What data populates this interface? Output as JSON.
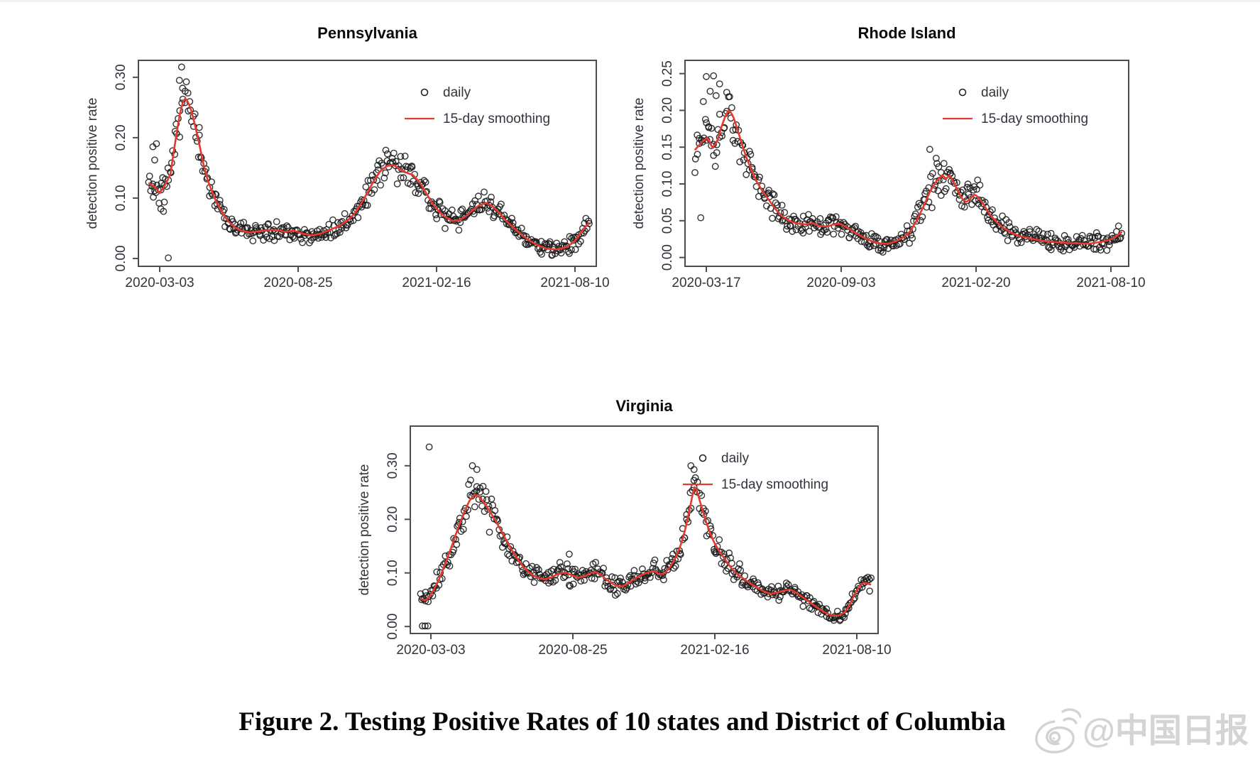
{
  "page": {
    "background": "#ffffff"
  },
  "caption": {
    "text": "Figure 2. Testing Positive Rates of 10 states and District of Columbia"
  },
  "watermark": {
    "handle": "@中国日报",
    "icon": "weibo-logo-icon",
    "color": "#d4d4d4"
  },
  "legend": {
    "daily_label": "daily",
    "smoothing_label": "15-day smoothing"
  },
  "colors": {
    "smoothing_line": "#e8392f",
    "point_stroke": "#1c1c1c",
    "axis": "#4d4d4d",
    "tick_text": "#30343c",
    "title_text": "#0a0a0a"
  },
  "chart_data": [
    {
      "id": "pennsylvania",
      "type": "scatter",
      "title": "Pennsylvania",
      "ylabel": "detection positive rate",
      "xlabel": "",
      "grid": false,
      "legend_position": "top-right-inside",
      "xticks": [
        "2020-03-03",
        "2020-08-25",
        "2021-02-16",
        "2021-08-10"
      ],
      "yticks": [
        0.0,
        0.1,
        0.2,
        0.3
      ],
      "ytick_labels": [
        "0.00",
        "0.10",
        "0.20",
        "0.30"
      ],
      "ylim": [
        -0.013,
        0.328
      ],
      "series": [
        {
          "name": "daily",
          "style": "open-circle",
          "n_points": 430,
          "seed": 11,
          "noise_base": 0.009,
          "noise_prop": 0.095,
          "outliers": [
            [
              0.01,
              0.185
            ],
            [
              0.018,
              0.19
            ],
            [
              0.014,
              0.163
            ],
            [
              0.028,
              0.082
            ],
            [
              0.034,
              0.078
            ],
            [
              0.045,
              0.001
            ],
            [
              0.07,
              0.295
            ],
            [
              0.075,
              0.317
            ]
          ]
        },
        {
          "name": "15-day smoothing",
          "style": "line",
          "keypoints": [
            [
              0,
              0.125
            ],
            [
              0.015,
              0.118
            ],
            [
              0.025,
              0.108
            ],
            [
              0.035,
              0.118
            ],
            [
              0.05,
              0.14
            ],
            [
              0.06,
              0.19
            ],
            [
              0.07,
              0.235
            ],
            [
              0.078,
              0.26
            ],
            [
              0.085,
              0.266
            ],
            [
              0.095,
              0.25
            ],
            [
              0.105,
              0.222
            ],
            [
              0.115,
              0.19
            ],
            [
              0.125,
              0.155
            ],
            [
              0.135,
              0.128
            ],
            [
              0.15,
              0.1
            ],
            [
              0.165,
              0.078
            ],
            [
              0.18,
              0.062
            ],
            [
              0.195,
              0.052
            ],
            [
              0.21,
              0.046
            ],
            [
              0.23,
              0.043
            ],
            [
              0.25,
              0.045
            ],
            [
              0.27,
              0.047
            ],
            [
              0.29,
              0.047
            ],
            [
              0.31,
              0.044
            ],
            [
              0.33,
              0.046
            ],
            [
              0.35,
              0.041
            ],
            [
              0.37,
              0.038
            ],
            [
              0.39,
              0.041
            ],
            [
              0.41,
              0.047
            ],
            [
              0.43,
              0.053
            ],
            [
              0.45,
              0.062
            ],
            [
              0.465,
              0.072
            ],
            [
              0.48,
              0.088
            ],
            [
              0.495,
              0.107
            ],
            [
              0.51,
              0.127
            ],
            [
              0.525,
              0.144
            ],
            [
              0.54,
              0.153
            ],
            [
              0.555,
              0.155
            ],
            [
              0.57,
              0.148
            ],
            [
              0.585,
              0.142
            ],
            [
              0.6,
              0.138
            ],
            [
              0.615,
              0.126
            ],
            [
              0.63,
              0.108
            ],
            [
              0.645,
              0.09
            ],
            [
              0.66,
              0.077
            ],
            [
              0.675,
              0.068
            ],
            [
              0.69,
              0.062
            ],
            [
              0.705,
              0.063
            ],
            [
              0.72,
              0.07
            ],
            [
              0.735,
              0.08
            ],
            [
              0.75,
              0.088
            ],
            [
              0.765,
              0.092
            ],
            [
              0.78,
              0.087
            ],
            [
              0.795,
              0.076
            ],
            [
              0.81,
              0.063
            ],
            [
              0.825,
              0.053
            ],
            [
              0.845,
              0.04
            ],
            [
              0.865,
              0.029
            ],
            [
              0.885,
              0.021
            ],
            [
              0.905,
              0.016
            ],
            [
              0.925,
              0.015
            ],
            [
              0.945,
              0.018
            ],
            [
              0.965,
              0.027
            ],
            [
              0.985,
              0.047
            ],
            [
              1,
              0.06
            ]
          ]
        }
      ]
    },
    {
      "id": "rhode-island",
      "type": "scatter",
      "title": "Rhode Island",
      "ylabel": "detection positive rate",
      "xlabel": "",
      "grid": false,
      "legend_position": "top-right-inside",
      "xticks": [
        "2020-03-17",
        "2020-09-03",
        "2021-02-20",
        "2021-08-10"
      ],
      "yticks": [
        0.0,
        0.05,
        0.1,
        0.15,
        0.2,
        0.25
      ],
      "ytick_labels": [
        "0.00",
        "0.05",
        "0.10",
        "0.15",
        "0.20",
        "0.25"
      ],
      "ylim": [
        -0.012,
        0.268
      ],
      "series": [
        {
          "name": "daily",
          "style": "open-circle",
          "n_points": 420,
          "seed": 23,
          "noise_base": 0.008,
          "noise_prop": 0.13,
          "outliers": [
            [
              0.02,
              0.212
            ],
            [
              0.027,
              0.246
            ],
            [
              0.044,
              0.247
            ],
            [
              0.036,
              0.226
            ],
            [
              0.058,
              0.236
            ],
            [
              0.05,
              0.22
            ],
            [
              0.014,
              0.054
            ],
            [
              0.55,
              0.147
            ],
            [
              0.565,
              0.135
            ]
          ]
        },
        {
          "name": "15-day smoothing",
          "style": "line",
          "keypoints": [
            [
              0,
              0.146
            ],
            [
              0.015,
              0.156
            ],
            [
              0.03,
              0.163
            ],
            [
              0.042,
              0.149
            ],
            [
              0.052,
              0.157
            ],
            [
              0.062,
              0.177
            ],
            [
              0.072,
              0.193
            ],
            [
              0.08,
              0.201
            ],
            [
              0.09,
              0.192
            ],
            [
              0.1,
              0.174
            ],
            [
              0.11,
              0.155
            ],
            [
              0.12,
              0.137
            ],
            [
              0.132,
              0.12
            ],
            [
              0.145,
              0.103
            ],
            [
              0.16,
              0.089
            ],
            [
              0.175,
              0.077
            ],
            [
              0.19,
              0.065
            ],
            [
              0.205,
              0.056
            ],
            [
              0.22,
              0.05
            ],
            [
              0.24,
              0.046
            ],
            [
              0.26,
              0.045
            ],
            [
              0.275,
              0.047
            ],
            [
              0.29,
              0.043
            ],
            [
              0.31,
              0.042
            ],
            [
              0.325,
              0.045
            ],
            [
              0.34,
              0.046
            ],
            [
              0.355,
              0.041
            ],
            [
              0.375,
              0.034
            ],
            [
              0.395,
              0.027
            ],
            [
              0.415,
              0.022
            ],
            [
              0.435,
              0.019
            ],
            [
              0.455,
              0.019
            ],
            [
              0.475,
              0.023
            ],
            [
              0.49,
              0.028
            ],
            [
              0.505,
              0.036
            ],
            [
              0.52,
              0.051
            ],
            [
              0.535,
              0.069
            ],
            [
              0.55,
              0.089
            ],
            [
              0.562,
              0.101
            ],
            [
              0.572,
              0.108
            ],
            [
              0.58,
              0.112
            ],
            [
              0.588,
              0.107
            ],
            [
              0.597,
              0.112
            ],
            [
              0.607,
              0.101
            ],
            [
              0.617,
              0.089
            ],
            [
              0.627,
              0.079
            ],
            [
              0.635,
              0.075
            ],
            [
              0.645,
              0.08
            ],
            [
              0.655,
              0.086
            ],
            [
              0.665,
              0.081
            ],
            [
              0.677,
              0.071
            ],
            [
              0.69,
              0.059
            ],
            [
              0.705,
              0.049
            ],
            [
              0.72,
              0.041
            ],
            [
              0.74,
              0.034
            ],
            [
              0.76,
              0.029
            ],
            [
              0.785,
              0.026
            ],
            [
              0.81,
              0.023
            ],
            [
              0.84,
              0.021
            ],
            [
              0.87,
              0.02
            ],
            [
              0.9,
              0.019
            ],
            [
              0.925,
              0.019
            ],
            [
              0.95,
              0.021
            ],
            [
              0.97,
              0.024
            ],
            [
              0.985,
              0.028
            ],
            [
              1,
              0.035
            ]
          ]
        }
      ]
    },
    {
      "id": "virginia",
      "type": "scatter",
      "title": "Virginia",
      "ylabel": "detection positive rate",
      "xlabel": "",
      "grid": false,
      "legend_position": "top-right-inside",
      "xticks": [
        "2020-03-03",
        "2020-08-25",
        "2021-02-16",
        "2021-08-10"
      ],
      "yticks": [
        0.0,
        0.1,
        0.2,
        0.3
      ],
      "ytick_labels": [
        "0.00",
        "0.10",
        "0.20",
        "0.30"
      ],
      "ylim": [
        -0.013,
        0.374
      ],
      "series": [
        {
          "name": "daily",
          "style": "open-circle",
          "n_points": 430,
          "seed": 37,
          "noise_base": 0.008,
          "noise_prop": 0.1,
          "outliers": [
            [
              0.004,
              0.001
            ],
            [
              0.01,
              0.001
            ],
            [
              0.016,
              0.001
            ],
            [
              0.019,
              0.335
            ],
            [
              0.115,
              0.3
            ],
            [
              0.125,
              0.293
            ],
            [
              0.6,
              0.3
            ],
            [
              0.607,
              0.293
            ],
            [
              0.33,
              0.135
            ],
            [
              0.56,
              0.135
            ]
          ]
        },
        {
          "name": "15-day smoothing",
          "style": "line",
          "keypoints": [
            [
              0,
              0.052
            ],
            [
              0.01,
              0.048
            ],
            [
              0.02,
              0.056
            ],
            [
              0.03,
              0.07
            ],
            [
              0.042,
              0.09
            ],
            [
              0.055,
              0.118
            ],
            [
              0.07,
              0.152
            ],
            [
              0.085,
              0.188
            ],
            [
              0.1,
              0.22
            ],
            [
              0.11,
              0.237
            ],
            [
              0.12,
              0.246
            ],
            [
              0.13,
              0.242
            ],
            [
              0.142,
              0.23
            ],
            [
              0.155,
              0.213
            ],
            [
              0.17,
              0.192
            ],
            [
              0.185,
              0.169
            ],
            [
              0.2,
              0.146
            ],
            [
              0.215,
              0.126
            ],
            [
              0.23,
              0.109
            ],
            [
              0.245,
              0.098
            ],
            [
              0.26,
              0.091
            ],
            [
              0.275,
              0.088
            ],
            [
              0.29,
              0.092
            ],
            [
              0.305,
              0.098
            ],
            [
              0.32,
              0.101
            ],
            [
              0.335,
              0.096
            ],
            [
              0.35,
              0.091
            ],
            [
              0.365,
              0.094
            ],
            [
              0.378,
              0.1
            ],
            [
              0.39,
              0.102
            ],
            [
              0.402,
              0.095
            ],
            [
              0.415,
              0.086
            ],
            [
              0.43,
              0.078
            ],
            [
              0.445,
              0.074
            ],
            [
              0.46,
              0.08
            ],
            [
              0.475,
              0.089
            ],
            [
              0.49,
              0.096
            ],
            [
              0.505,
              0.101
            ],
            [
              0.518,
              0.104
            ],
            [
              0.53,
              0.097
            ],
            [
              0.543,
              0.1
            ],
            [
              0.555,
              0.112
            ],
            [
              0.567,
              0.13
            ],
            [
              0.578,
              0.153
            ],
            [
              0.589,
              0.186
            ],
            [
              0.598,
              0.222
            ],
            [
              0.604,
              0.247
            ],
            [
              0.609,
              0.262
            ],
            [
              0.614,
              0.252
            ],
            [
              0.622,
              0.228
            ],
            [
              0.632,
              0.2
            ],
            [
              0.642,
              0.176
            ],
            [
              0.652,
              0.156
            ],
            [
              0.663,
              0.141
            ],
            [
              0.675,
              0.126
            ],
            [
              0.688,
              0.111
            ],
            [
              0.702,
              0.098
            ],
            [
              0.716,
              0.09
            ],
            [
              0.731,
              0.081
            ],
            [
              0.746,
              0.073
            ],
            [
              0.761,
              0.066
            ],
            [
              0.776,
              0.061
            ],
            [
              0.791,
              0.063
            ],
            [
              0.806,
              0.067
            ],
            [
              0.821,
              0.069
            ],
            [
              0.836,
              0.062
            ],
            [
              0.851,
              0.053
            ],
            [
              0.866,
              0.044
            ],
            [
              0.881,
              0.035
            ],
            [
              0.896,
              0.027
            ],
            [
              0.911,
              0.021
            ],
            [
              0.927,
              0.02
            ],
            [
              0.942,
              0.027
            ],
            [
              0.953,
              0.041
            ],
            [
              0.963,
              0.06
            ],
            [
              0.974,
              0.075
            ],
            [
              0.985,
              0.082
            ],
            [
              1,
              0.078
            ]
          ]
        }
      ]
    }
  ]
}
